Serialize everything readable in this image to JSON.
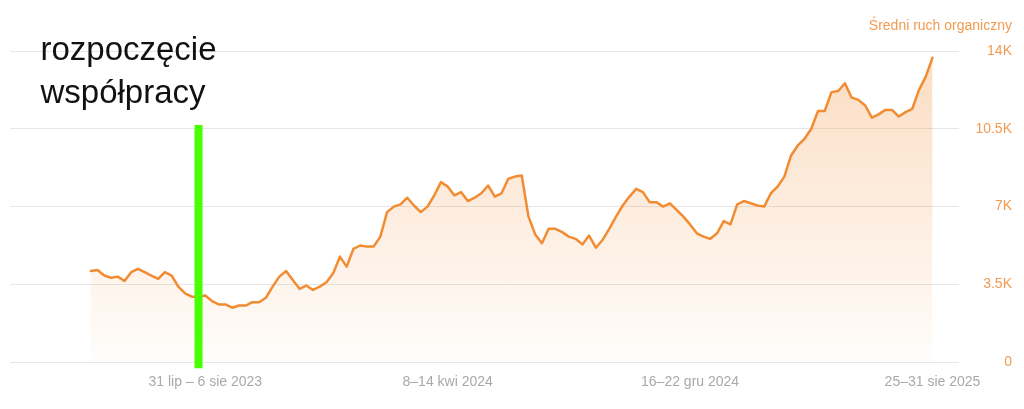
{
  "chart_data": {
    "type": "area",
    "ylabel": "Średni ruch organiczny",
    "color": "#f28c33",
    "x": [
      "2023-04-03",
      "2023-04-10",
      "2023-04-17",
      "2023-04-24",
      "2023-05-01",
      "2023-05-08",
      "2023-05-15",
      "2023-05-22",
      "2023-05-29",
      "2023-06-05",
      "2023-06-12",
      "2023-06-19",
      "2023-06-26",
      "2023-07-03",
      "2023-07-10",
      "2023-07-17",
      "2023-07-24",
      "2023-07-31",
      "2023-08-07",
      "2023-08-14",
      "2023-08-21",
      "2023-08-28",
      "2023-09-04",
      "2023-09-11",
      "2023-09-18",
      "2023-09-25",
      "2023-10-02",
      "2023-10-09",
      "2023-10-16",
      "2023-10-23",
      "2023-10-30",
      "2023-11-06",
      "2023-11-13",
      "2023-11-20",
      "2023-11-27",
      "2023-12-04",
      "2023-12-11",
      "2023-12-18",
      "2023-12-25",
      "2024-01-01",
      "2024-01-08",
      "2024-01-15",
      "2024-01-22",
      "2024-01-29",
      "2024-02-05",
      "2024-02-12",
      "2024-02-19",
      "2024-02-26",
      "2024-03-04",
      "2024-03-11",
      "2024-03-18",
      "2024-03-25",
      "2024-04-01",
      "2024-04-08",
      "2024-04-15",
      "2024-04-22",
      "2024-04-29",
      "2024-05-06",
      "2024-05-13",
      "2024-05-20",
      "2024-05-27",
      "2024-06-03",
      "2024-06-10",
      "2024-06-17",
      "2024-06-24",
      "2024-07-01",
      "2024-07-08",
      "2024-07-15",
      "2024-07-22",
      "2024-07-29",
      "2024-08-05",
      "2024-08-12",
      "2024-08-19",
      "2024-08-26",
      "2024-09-02",
      "2024-09-09",
      "2024-09-16",
      "2024-09-23",
      "2024-09-30",
      "2024-10-07",
      "2024-10-14",
      "2024-10-21",
      "2024-10-28",
      "2024-11-04",
      "2024-11-11",
      "2024-11-18",
      "2024-11-25",
      "2024-12-02",
      "2024-12-09",
      "2024-12-16",
      "2024-12-23",
      "2024-12-30",
      "2025-01-06",
      "2025-01-13",
      "2025-01-20",
      "2025-01-27",
      "2025-02-03",
      "2025-02-10",
      "2025-02-17",
      "2025-02-24",
      "2025-03-03",
      "2025-03-10",
      "2025-03-17",
      "2025-03-24",
      "2025-03-31",
      "2025-04-07",
      "2025-04-14",
      "2025-04-21",
      "2025-04-28",
      "2025-05-05",
      "2025-05-12",
      "2025-05-19",
      "2025-05-26",
      "2025-06-02",
      "2025-06-09",
      "2025-06-16",
      "2025-06-23",
      "2025-06-30",
      "2025-07-07",
      "2025-07-14",
      "2025-07-21",
      "2025-07-28",
      "2025-08-04",
      "2025-08-11",
      "2025-08-18",
      "2025-08-25"
    ],
    "values": [
      4100,
      4150,
      3900,
      3800,
      3850,
      3650,
      4050,
      4200,
      4050,
      3900,
      3750,
      4050,
      3900,
      3400,
      3100,
      2950,
      2950,
      3000,
      2750,
      2600,
      2600,
      2450,
      2550,
      2550,
      2700,
      2700,
      2900,
      3400,
      3850,
      4100,
      3700,
      3300,
      3450,
      3250,
      3400,
      3600,
      4000,
      4750,
      4300,
      5100,
      5250,
      5200,
      5200,
      5650,
      6750,
      7000,
      7100,
      7400,
      7050,
      6750,
      7000,
      7500,
      8100,
      7900,
      7500,
      7650,
      7250,
      7400,
      7600,
      7950,
      7450,
      7600,
      8250,
      8350,
      8400,
      6550,
      5750,
      5350,
      6000,
      6000,
      5850,
      5650,
      5550,
      5300,
      5700,
      5150,
      5500,
      6000,
      6550,
      7050,
      7450,
      7800,
      7650,
      7200,
      7200,
      7000,
      7150,
      6850,
      6550,
      6200,
      5800,
      5650,
      5550,
      5800,
      6350,
      6200,
      7100,
      7250,
      7150,
      7050,
      7000,
      7600,
      7900,
      8350,
      9300,
      9750,
      10050,
      10500,
      11300,
      11300,
      12150,
      12200,
      12550,
      11900,
      11800,
      11550,
      11000,
      11150,
      11350,
      11350,
      11050,
      11250,
      11400,
      12250,
      12850,
      13700
    ],
    "xlim": [
      "2023-01-09",
      "2025-09-22"
    ],
    "xticks": [
      {
        "value": "2023-07-31",
        "label": "31 lip – 6 sie 2023"
      },
      {
        "value": "2024-04-08",
        "label": "8–14 kwi 2024"
      },
      {
        "value": "2024-12-16",
        "label": "16–22 gru 2024"
      },
      {
        "value": "2025-08-25",
        "label": "25–31 sie 2025"
      }
    ],
    "ylim": [
      0,
      14000
    ],
    "yticks": [
      0,
      {
        "value": 3500,
        "label": "3.5K"
      },
      {
        "value": 7000,
        "label": "7K"
      },
      {
        "value": 10500,
        "label": "10.5K"
      },
      {
        "value": 14000,
        "label": "14K"
      }
    ],
    "grid": "y",
    "ref_lines": [
      {
        "axis": "x",
        "value": "2023-07-24",
        "label": "rozpoczęcie współpracy",
        "color": "#47ff00"
      }
    ]
  }
}
